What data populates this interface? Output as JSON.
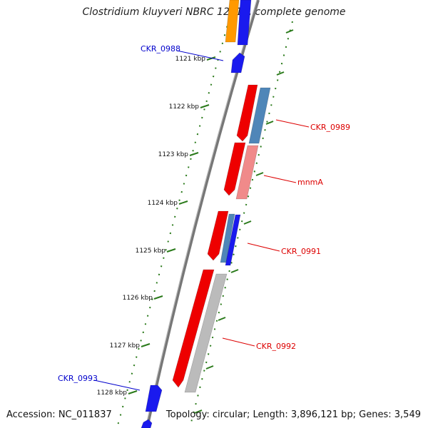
{
  "title": "Clostridium kluyveri NBRC 12016, complete genome",
  "footer": {
    "accession": "Accession: NC_011837",
    "topology": "Topology: circular; Length: 3,896,121 bp; Genes: 3,549"
  },
  "colors": {
    "backbone": "#777777",
    "tick": "#2a7a1a",
    "forward_cds": "#ee0000",
    "forward_light": "#f08a8a",
    "reverse_cds": "#1a1aee",
    "steel": "#4f86b8",
    "orange": "#ff9900",
    "gray": "#bbbbbb",
    "label_blue": "#0000cc",
    "label_red": "#dd0000"
  },
  "scale": {
    "unit": "kbp",
    "ticks": [
      {
        "label": "1121 kbp"
      },
      {
        "label": "1122 kbp"
      },
      {
        "label": "1123 kbp"
      },
      {
        "label": "1124 kbp"
      },
      {
        "label": "1125 kbp"
      },
      {
        "label": "1126 kbp"
      },
      {
        "label": "1127 kbp"
      },
      {
        "label": "1128 kbp"
      }
    ]
  },
  "gene_labels": [
    {
      "id": "CKR_0988",
      "text": "CKR_0988",
      "color": "blue"
    },
    {
      "id": "CKR_0989",
      "text": "CKR_0989",
      "color": "red"
    },
    {
      "id": "mnmA",
      "text": "mnmA",
      "color": "red"
    },
    {
      "id": "CKR_0991",
      "text": "CKR_0991",
      "color": "red"
    },
    {
      "id": "CKR_0992",
      "text": "CKR_0992",
      "color": "red"
    },
    {
      "id": "CKR_0993",
      "text": "CKR_0993",
      "color": "blue"
    }
  ]
}
